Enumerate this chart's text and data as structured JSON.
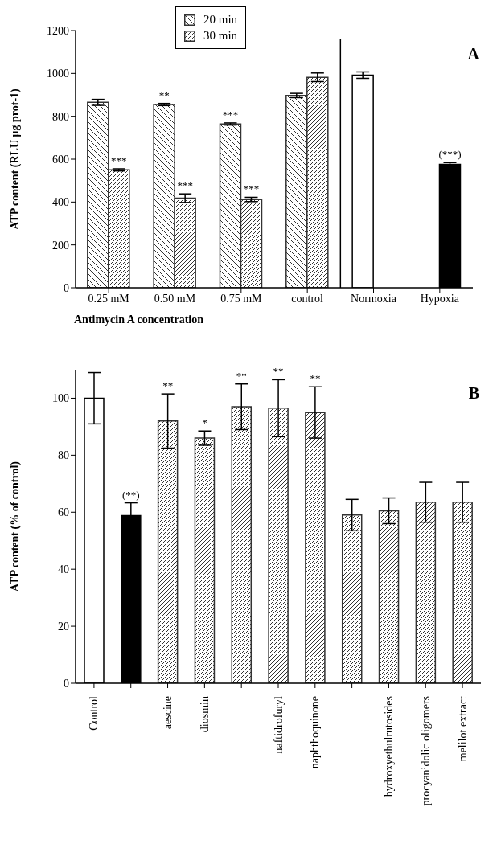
{
  "chart_data": [
    {
      "type": "bar",
      "title": "A",
      "xlabel": "Antimycin A concentration",
      "ylabel": "ATP content (RLU μg prot-1)",
      "categories": [
        "0.25 mM",
        "0.50 mM",
        "0.75 mM",
        "control",
        "Normoxia",
        "Hypoxia"
      ],
      "series": [
        {
          "name": "20 min",
          "color": "#333333",
          "values": [
            865,
            855,
            764,
            897,
            null,
            null
          ],
          "errors": [
            14,
            5,
            5,
            10,
            null,
            null
          ],
          "value_labels": [
            null,
            "**",
            "***",
            null,
            null,
            null
          ]
        },
        {
          "name": "30 min",
          "color": "#333333",
          "values": [
            550,
            418,
            412,
            982,
            null,
            null
          ],
          "errors": [
            5,
            20,
            10,
            20,
            null,
            null
          ],
          "value_labels": [
            "***",
            "***",
            "***",
            null,
            null,
            null
          ]
        },
        {
          "color": "#ffffff",
          "values": [
            null,
            null,
            null,
            null,
            992,
            null
          ],
          "errors": [
            null,
            null,
            null,
            null,
            15,
            null
          ]
        },
        {
          "color": "#000000",
          "values": [
            null,
            null,
            null,
            null,
            null,
            576
          ],
          "errors": [
            null,
            null,
            null,
            null,
            null,
            8
          ],
          "value_labels": [
            null,
            null,
            null,
            null,
            null,
            "(***)"
          ]
        }
      ],
      "ylim": [
        0,
        1200
      ],
      "yticks": [
        0,
        200,
        400,
        600,
        800,
        1000,
        1200
      ],
      "legend": "top"
    },
    {
      "type": "bar",
      "title": "B",
      "ylabel": "ATP content (% of control)",
      "categories": [
        "Control",
        null,
        "aescine",
        "diosmin",
        null,
        "naftidrofuryl",
        "naphthoquinone",
        null,
        "hydroxyethulrutosides",
        "procyanidolic oligomers",
        "melilot extract"
      ],
      "values": [
        100,
        58.8,
        92,
        86,
        97,
        96.5,
        95,
        59,
        60.5,
        63.5,
        63.5
      ],
      "errors": [
        9,
        4.5,
        9.5,
        2.5,
        8,
        10,
        9,
        5.5,
        4.5,
        7,
        7
      ],
      "colors": [
        "#ffffff",
        "#000000",
        "#333333",
        "#333333",
        "#333333",
        "#333333",
        "#333333",
        "#333333",
        "#333333",
        "#333333",
        "#333333"
      ],
      "value_labels": [
        null,
        "(**)",
        "**",
        "*",
        "**",
        "**",
        "**",
        null,
        null,
        null,
        null
      ],
      "ylim": [
        0,
        110
      ],
      "yticks": [
        0,
        20,
        40,
        60,
        80,
        100
      ]
    }
  ]
}
